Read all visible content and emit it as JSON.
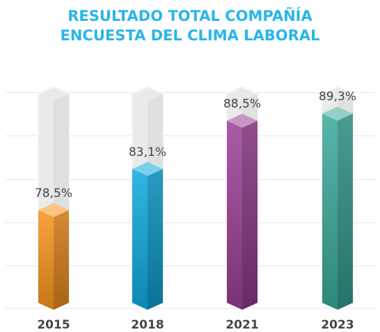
{
  "chart_data": {
    "type": "bar",
    "title": "RESULTADO TOTAL COMPAÑÍA",
    "subtitle": "ENCUESTA DEL CLIMA LABORAL",
    "categories": [
      "2015",
      "2018",
      "2021",
      "2023"
    ],
    "values": [
      78.5,
      83.1,
      88.5,
      89.3
    ],
    "value_labels": [
      "78,5%",
      "83,1%",
      "88,5%",
      "89,3%"
    ],
    "colors": [
      "#f7941d",
      "#0ea9de",
      "#9a3f96",
      "#3aa99a"
    ],
    "ylim": [
      67.5,
      91.5
    ]
  }
}
